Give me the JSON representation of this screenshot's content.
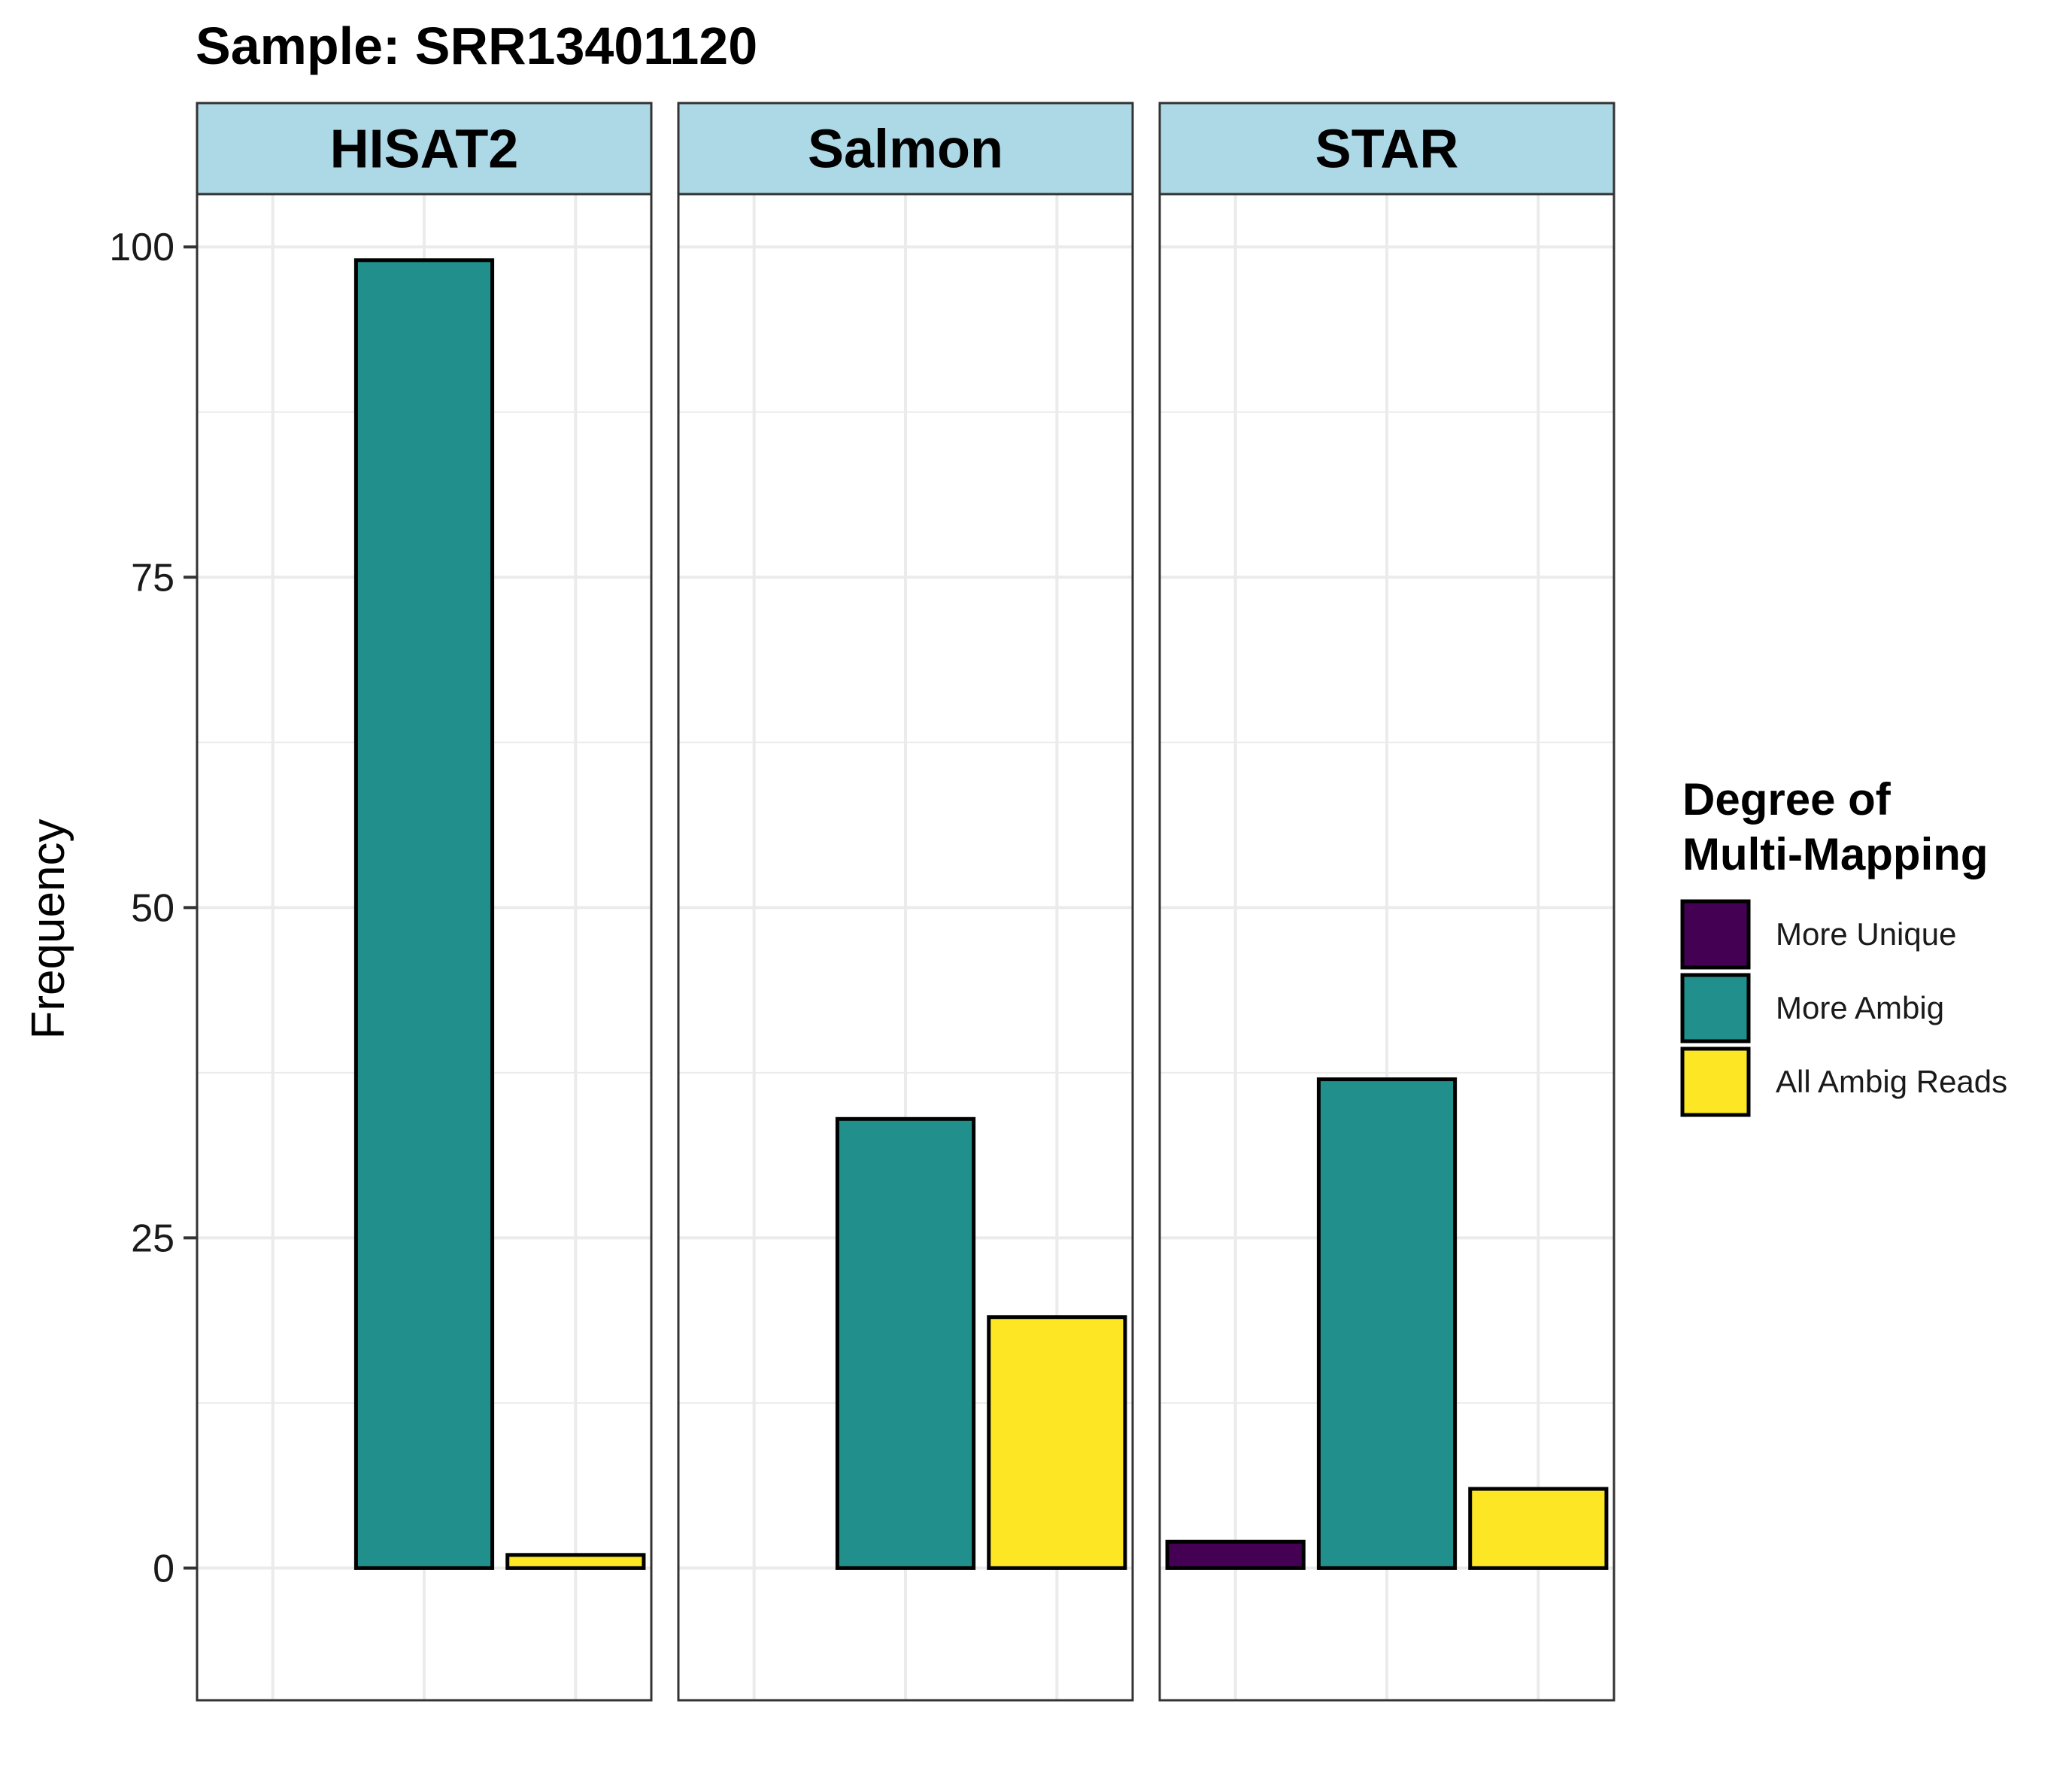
{
  "chart_data": {
    "type": "bar",
    "title": "Sample: SRR13401120",
    "ylabel": "Frequency",
    "xlabel": "",
    "ylim": [
      -10,
      104
    ],
    "yticks": [
      0,
      25,
      50,
      75,
      100
    ],
    "grid": true,
    "legend": {
      "title_lines": [
        "Degree of",
        "Multi-Mapping"
      ],
      "placement": "right"
    },
    "categories": [
      "More Unique",
      "More Ambig",
      "All Ambig Reads"
    ],
    "colors": {
      "More Unique": "#440154",
      "More Ambig": "#21908C",
      "All Ambig Reads": "#FDE725"
    },
    "panels": [
      {
        "name": "HISAT2",
        "values": [
          0,
          99,
          1
        ]
      },
      {
        "name": "Salmon",
        "values": [
          0,
          34,
          19
        ]
      },
      {
        "name": "STAR",
        "values": [
          2,
          37,
          6
        ]
      }
    ],
    "strip_color": "#ADD8E6"
  }
}
